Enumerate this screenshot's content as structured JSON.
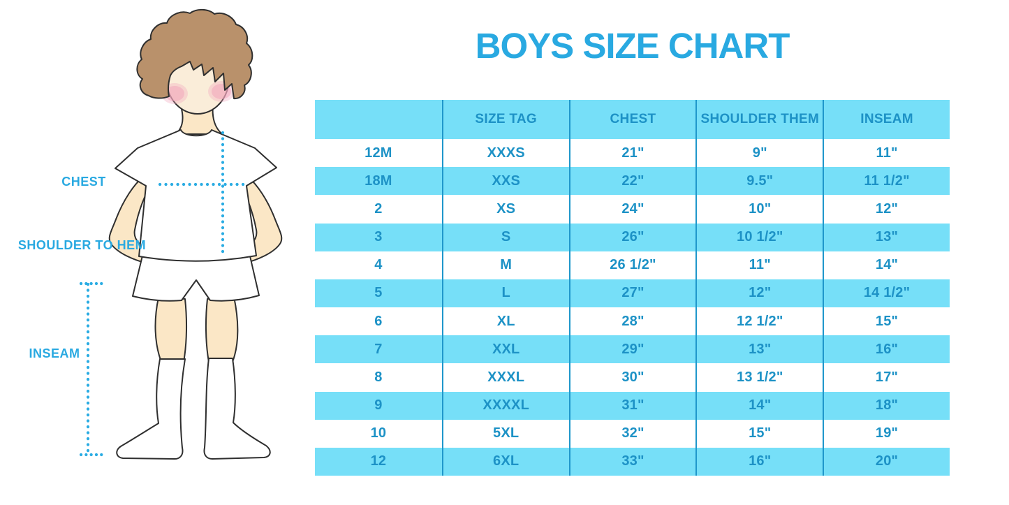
{
  "title": "BOYS SIZE CHART",
  "colors": {
    "accent": "#29A9E1",
    "stripe": "#76DFF8",
    "table_text": "#1D92C6",
    "divider": "#1F97CB",
    "background": "#FFFFFF",
    "skin": "#FBE7C6",
    "face_skin": "#FAEDD9",
    "hair": "#B9916B",
    "blush": "#F2A6BC",
    "outline": "#2F2F2F",
    "dotted_line": "#2AACE3"
  },
  "figure": {
    "labels": {
      "chest": "CHEST",
      "shoulder_to_hem": "SHOULDER TO HEM",
      "inseam": "INSEAM"
    }
  },
  "chart_data": {
    "type": "table",
    "title": "BOYS SIZE CHART",
    "columns": [
      "",
      "SIZE TAG",
      "CHEST",
      "SHOULDER THEM",
      "INSEAM"
    ],
    "rows": [
      [
        "12M",
        "XXXS",
        "21\"",
        "9\"",
        "11\""
      ],
      [
        "18M",
        "XXS",
        "22\"",
        "9.5\"",
        "11 1/2\""
      ],
      [
        "2",
        "XS",
        "24\"",
        "10\"",
        "12\""
      ],
      [
        "3",
        "S",
        "26\"",
        "10 1/2\"",
        "13\""
      ],
      [
        "4",
        "M",
        "26 1/2\"",
        "11\"",
        "14\""
      ],
      [
        "5",
        "L",
        "27\"",
        "12\"",
        "14 1/2\""
      ],
      [
        "6",
        "XL",
        "28\"",
        "12 1/2\"",
        "15\""
      ],
      [
        "7",
        "XXL",
        "29\"",
        "13\"",
        "16\""
      ],
      [
        "8",
        "XXXL",
        "30\"",
        "13 1/2\"",
        "17\""
      ],
      [
        "9",
        "XXXXL",
        "31\"",
        "14\"",
        "18\""
      ],
      [
        "10",
        "5XL",
        "32\"",
        "15\"",
        "19\""
      ],
      [
        "12",
        "6XL",
        "33\"",
        "16\"",
        "20\""
      ]
    ],
    "stripe_pattern": "header and every second data row light cyan, others white",
    "grid": "vertical dividers only, no outer border"
  }
}
